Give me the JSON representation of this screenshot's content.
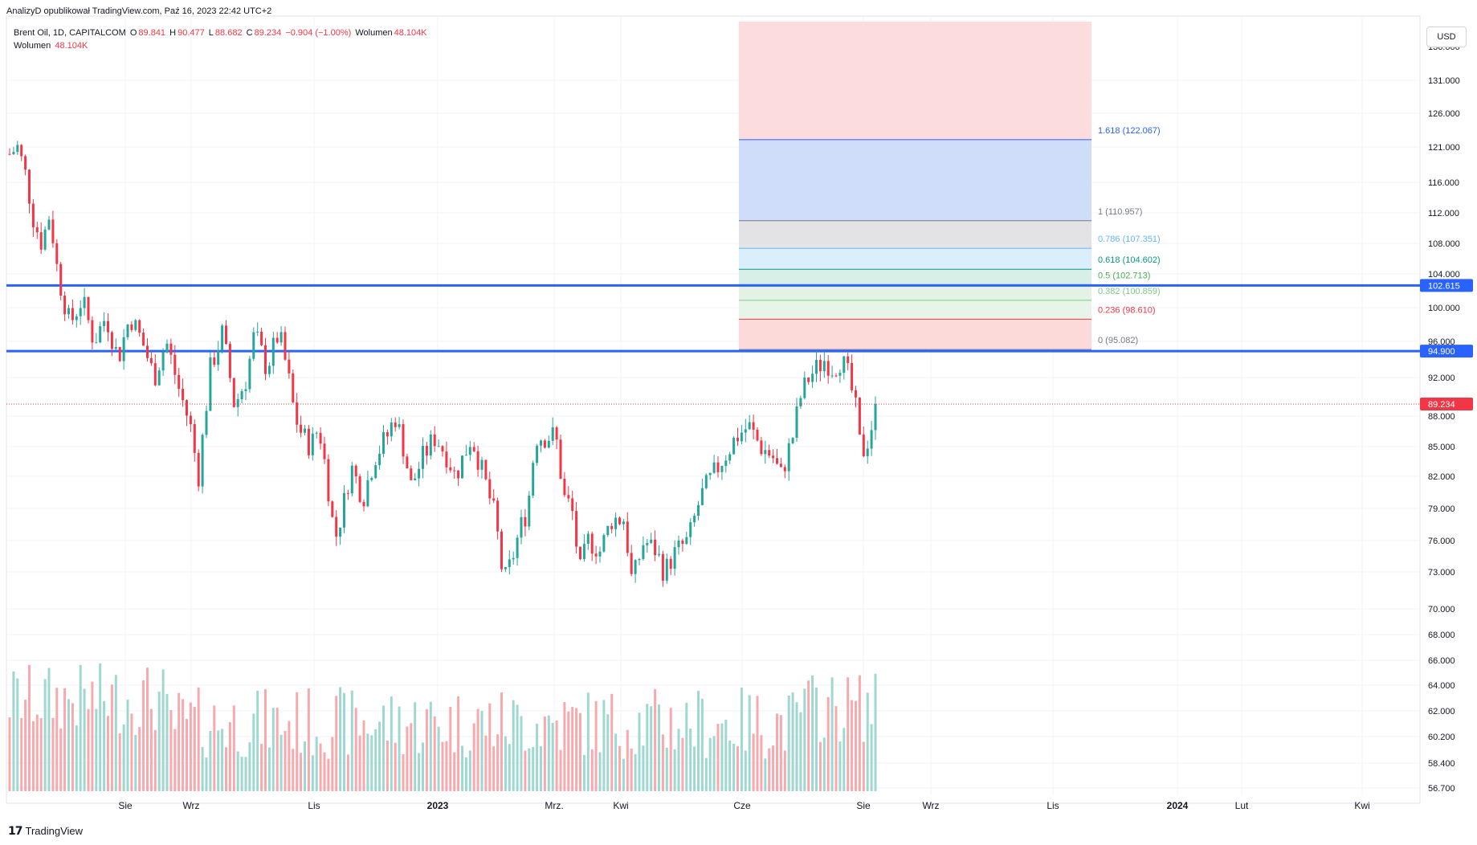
{
  "credit": "AnalizyD opublikował TradingView.com, Paź 16, 2023 22:42 UTC+2",
  "legend": {
    "symbol": "Brent Oil, 1D, CAPITALCOM",
    "o_label": "O",
    "o_value": "89.841",
    "h_label": "H",
    "h_value": "90.477",
    "l_label": "L",
    "l_value": "88.682",
    "c_label": "C",
    "c_value": "89.234",
    "change": "−0.904 (−1.00%)",
    "vol_label": "Wolumen",
    "vol_value": "48.104K",
    "vol_row_label": "Wolumen",
    "vol_row_value": "48.104K"
  },
  "currency": "USD",
  "footer": {
    "brand": "TradingView"
  },
  "colors": {
    "up": "#26a69a",
    "down": "#f23645",
    "upVol": "#9fd7d1",
    "downVol": "#f7a9ad",
    "hline": "#2962ff",
    "priceLine": "#f23645",
    "grid": "#f0f3fa"
  },
  "chart_data": {
    "type": "candlestick",
    "title": "Brent Oil, 1D, CAPITALCOM",
    "price_axis_ticks": [
      "131.000",
      "126.000",
      "121.000",
      "116.000",
      "112.000",
      "108.000",
      "104.000",
      "100.000",
      "96.000",
      "92.000",
      "88.000",
      "85.000",
      "82.000",
      "79.000",
      "76.000",
      "73.000",
      "70.000",
      "68.000",
      "66.000",
      "64.000",
      "62.000",
      "60.200",
      "58.400",
      "56.700"
    ],
    "price_axis_top_partial": "136.000",
    "scale": "log",
    "x_axis_ticks": [
      "Sie",
      "Wrz",
      "Lis",
      "2023",
      "Mrz.",
      "Kwi",
      "Cze",
      "Sie",
      "Wrz",
      "Lis",
      "2024",
      "Lut",
      "Kwi"
    ],
    "horizontal_lines": [
      {
        "value": 102.615,
        "label": "102.615"
      },
      {
        "value": 94.9,
        "label": "94.900"
      }
    ],
    "last_price": {
      "value": 89.234,
      "label": "89.234"
    },
    "fibonacci": [
      {
        "ratio": "1.618",
        "price": "122.067",
        "label": "1.618 (122.067)",
        "color": "#2962ff",
        "value": 122.067
      },
      {
        "ratio": "1",
        "price": "110.957",
        "label": "1 (110.957)",
        "color": "#787b86",
        "value": 110.957
      },
      {
        "ratio": "0.786",
        "price": "107.351",
        "label": "0.786 (107.351)",
        "color": "#64b5f6",
        "value": 107.351
      },
      {
        "ratio": "0.618",
        "price": "104.602",
        "label": "0.618 (104.602)",
        "color": "#089981",
        "value": 104.602
      },
      {
        "ratio": "0.5",
        "price": "102.713",
        "label": "0.5 (102.713)",
        "color": "#4caf50",
        "value": 102.713
      },
      {
        "ratio": "0.382",
        "price": "100.859",
        "label": "0.382 (100.859)",
        "color": "#81c784",
        "value": 100.859
      },
      {
        "ratio": "0.236",
        "price": "98.610",
        "label": "0.236 (98.610)",
        "color": "#f23645",
        "value": 98.61
      },
      {
        "ratio": "0",
        "price": "95.082",
        "label": "0 (95.082)",
        "color": "#787b86",
        "value": 95.082
      }
    ],
    "fib_extension_top_value": 140,
    "price_path_anchors": [
      [
        0,
        120
      ],
      [
        10,
        121
      ],
      [
        20,
        117
      ],
      [
        30,
        111
      ],
      [
        40,
        108
      ],
      [
        50,
        112
      ],
      [
        60,
        104
      ],
      [
        75,
        98
      ],
      [
        90,
        101
      ],
      [
        105,
        96
      ],
      [
        120,
        99
      ],
      [
        135,
        94
      ],
      [
        150,
        99
      ],
      [
        165,
        96
      ],
      [
        180,
        92
      ],
      [
        195,
        96
      ],
      [
        210,
        91
      ],
      [
        225,
        87
      ],
      [
        235,
        82
      ],
      [
        250,
        93
      ],
      [
        265,
        97
      ],
      [
        280,
        89
      ],
      [
        295,
        92
      ],
      [
        305,
        97
      ],
      [
        320,
        93
      ],
      [
        335,
        97
      ],
      [
        345,
        93
      ],
      [
        355,
        88
      ],
      [
        365,
        86
      ],
      [
        375,
        85
      ],
      [
        385,
        87
      ],
      [
        395,
        82
      ],
      [
        405,
        76
      ],
      [
        415,
        79
      ],
      [
        425,
        83
      ],
      [
        440,
        80
      ],
      [
        455,
        84
      ],
      [
        470,
        86
      ],
      [
        480,
        88
      ],
      [
        490,
        85
      ],
      [
        500,
        81
      ],
      [
        515,
        84
      ],
      [
        530,
        86
      ],
      [
        545,
        84
      ],
      [
        555,
        82
      ],
      [
        565,
        84
      ],
      [
        575,
        86
      ],
      [
        590,
        82
      ],
      [
        605,
        78
      ],
      [
        615,
        72
      ],
      [
        625,
        74
      ],
      [
        635,
        77
      ],
      [
        645,
        79
      ],
      [
        655,
        86
      ],
      [
        665,
        86
      ],
      [
        680,
        86
      ],
      [
        690,
        80
      ],
      [
        700,
        79
      ],
      [
        710,
        73
      ],
      [
        720,
        76
      ],
      [
        735,
        75
      ],
      [
        750,
        78
      ],
      [
        765,
        78
      ],
      [
        775,
        72
      ],
      [
        790,
        76
      ],
      [
        805,
        75
      ],
      [
        815,
        73
      ],
      [
        830,
        75
      ],
      [
        845,
        76
      ],
      [
        860,
        80
      ],
      [
        875,
        82
      ],
      [
        890,
        84
      ],
      [
        905,
        86
      ],
      [
        920,
        87
      ],
      [
        935,
        85
      ],
      [
        950,
        84
      ],
      [
        960,
        82
      ],
      [
        975,
        86
      ],
      [
        985,
        90
      ],
      [
        995,
        92
      ],
      [
        1005,
        93
      ],
      [
        1015,
        94
      ],
      [
        1025,
        93
      ],
      [
        1035,
        94
      ],
      [
        1045,
        92
      ],
      [
        1055,
        88
      ],
      [
        1060,
        84
      ],
      [
        1070,
        86
      ],
      [
        1080,
        89.234
      ]
    ]
  }
}
